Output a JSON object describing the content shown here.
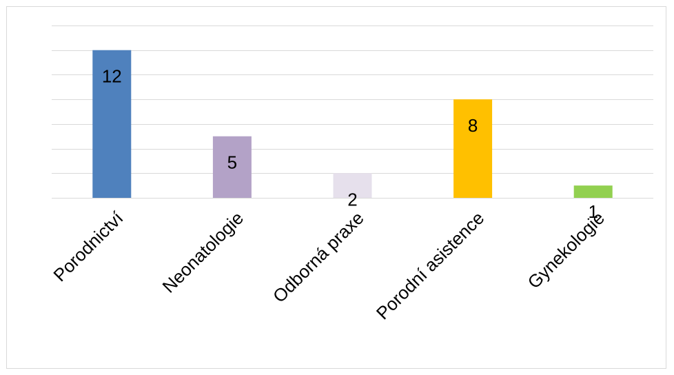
{
  "chart_data": {
    "type": "bar",
    "categories": [
      "Porodnictví",
      "Neonatologie",
      "Odborná praxe",
      "Porodní asistence",
      "Gynekologie"
    ],
    "values": [
      12,
      5,
      2,
      8,
      1
    ],
    "colors": [
      "#4f81bd",
      "#b3a2c7",
      "#e6e0ec",
      "#ffc000",
      "#92d050"
    ],
    "title": "",
    "xlabel": "",
    "ylabel": "",
    "ylim": [
      0,
      14
    ],
    "grid": true,
    "data_labels": true,
    "legend": "none"
  }
}
